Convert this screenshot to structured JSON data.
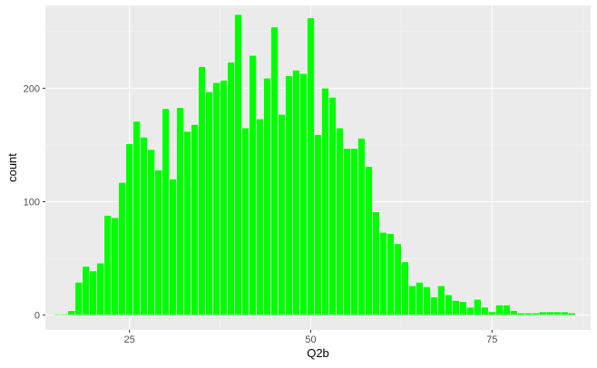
{
  "chart_data": {
    "type": "bar",
    "title": "",
    "xlabel": "Q2b",
    "ylabel": "count",
    "xlim": [
      13.4,
      88.6
    ],
    "ylim": [
      -13,
      273
    ],
    "x_ticks": [
      25,
      50,
      75
    ],
    "y_ticks": [
      0,
      100,
      200
    ],
    "x_tick_labels": [
      "25",
      "50",
      "75"
    ],
    "y_tick_labels": [
      "0",
      "100",
      "200"
    ],
    "grid": true,
    "bar_width": 1,
    "series": [
      {
        "color": "#00ff00",
        "x": [
          15,
          16,
          17,
          18,
          19,
          20,
          21,
          22,
          23,
          24,
          25,
          26,
          27,
          28,
          29,
          30,
          31,
          32,
          33,
          34,
          35,
          36,
          37,
          38,
          39,
          40,
          41,
          42,
          43,
          44,
          45,
          46,
          47,
          48,
          49,
          50,
          51,
          52,
          53,
          54,
          55,
          56,
          57,
          58,
          59,
          60,
          61,
          62,
          63,
          64,
          65,
          66,
          67,
          68,
          69,
          70,
          71,
          72,
          73,
          74,
          75,
          76,
          77,
          78,
          79,
          80,
          81,
          82,
          83,
          84,
          85,
          86,
          87
        ],
        "values": [
          1,
          1,
          4,
          29,
          43,
          39,
          46,
          88,
          86,
          117,
          151,
          171,
          157,
          146,
          128,
          182,
          120,
          183,
          162,
          168,
          219,
          197,
          205,
          207,
          223,
          265,
          165,
          229,
          173,
          209,
          254,
          177,
          211,
          216,
          213,
          262,
          159,
          200,
          192,
          165,
          147,
          147,
          156,
          131,
          91,
          73,
          72,
          63,
          47,
          26,
          29,
          25,
          16,
          26,
          18,
          13,
          12,
          7,
          14,
          7,
          3,
          9,
          9,
          4,
          2,
          2,
          2,
          3,
          3,
          3,
          3,
          2,
          0
        ]
      }
    ]
  }
}
